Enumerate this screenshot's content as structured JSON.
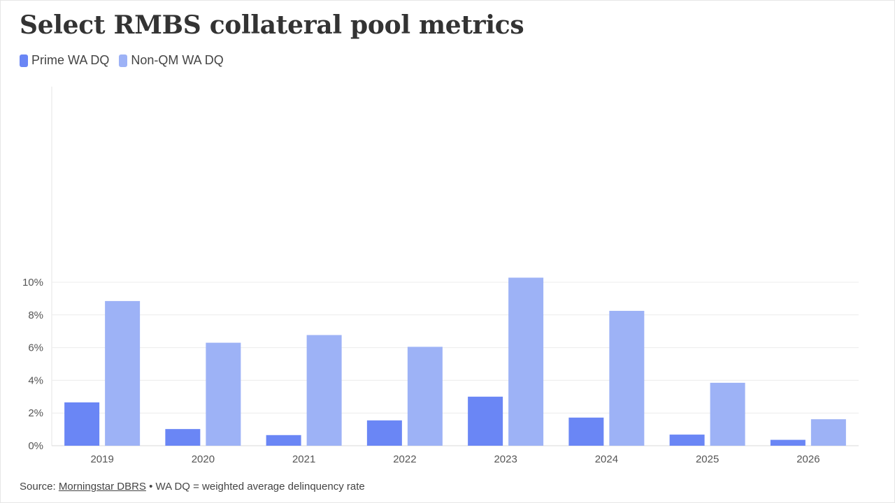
{
  "title": "Select RMBS collateral pool metrics",
  "legend": [
    {
      "label": "Prime WA DQ",
      "color": "#6a86f5"
    },
    {
      "label": "Non-QM WA DQ",
      "color": "#9db2f6"
    }
  ],
  "footer": {
    "prefix": "Source: ",
    "source": "Morningstar DBRS",
    "note": " • WA DQ = weighted average delinquency rate"
  },
  "chart_data": {
    "type": "bar",
    "categories": [
      "2019",
      "2020",
      "2021",
      "2022",
      "2023",
      "2024",
      "2025",
      "2026"
    ],
    "series": [
      {
        "name": "Prime WA DQ",
        "color": "#6a86f5",
        "values": [
          2.65,
          1.02,
          0.65,
          1.55,
          3.0,
          1.72,
          0.68,
          0.36
        ]
      },
      {
        "name": "Non-QM WA DQ",
        "color": "#9db2f6",
        "values": [
          8.85,
          6.3,
          6.77,
          6.05,
          10.28,
          8.25,
          3.85,
          1.62
        ]
      }
    ],
    "ylim": [
      0,
      11
    ],
    "yticks": [
      0,
      2,
      4,
      6,
      8,
      10
    ],
    "ytick_labels": [
      "0%",
      "2%",
      "4%",
      "6%",
      "8%",
      "10%"
    ],
    "grid": true,
    "legend_position": "top-left"
  }
}
